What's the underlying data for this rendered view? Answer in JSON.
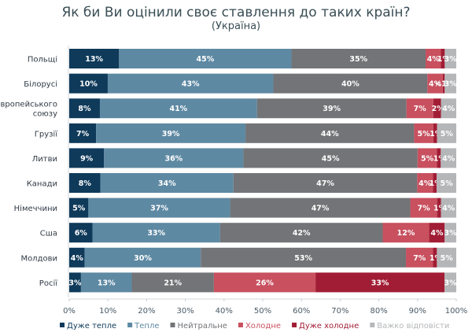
{
  "chart_data": {
    "type": "bar",
    "orientation": "horizontal",
    "stacked": true,
    "percent": true,
    "title": "Як би Ви оцінили своє ставлення до таких країн?",
    "subtitle": "(Україна)",
    "xlabel": "",
    "ylabel": "",
    "xlim": [
      0,
      100
    ],
    "x_ticks": [
      "0%",
      "10%",
      "20%",
      "30%",
      "40%",
      "50%",
      "60%",
      "70%",
      "80%",
      "90%",
      "100%"
    ],
    "grid": false,
    "legend_position": "bottom",
    "categories": [
      "Польщі",
      "Білорусі",
      "Європейського союзу",
      "Грузії",
      "Литви",
      "Канади",
      "Німеччини",
      "Сша",
      "Молдови",
      "Росії"
    ],
    "category_lines": [
      [
        "Польщі"
      ],
      [
        "Білорусі"
      ],
      [
        "Європейського",
        "союзу"
      ],
      [
        "Грузії"
      ],
      [
        "Литви"
      ],
      [
        "Канади"
      ],
      [
        "Німеччини"
      ],
      [
        "Сша"
      ],
      [
        "Молдови"
      ],
      [
        "Росії"
      ]
    ],
    "series": [
      {
        "name": "Дуже тепле",
        "color": "#0f3a5a",
        "values": [
          13,
          10,
          8,
          7,
          9,
          8,
          5,
          6,
          4,
          3
        ],
        "labels": [
          "13%",
          "10%",
          "8%",
          "7%",
          "9%",
          "8%",
          "5%",
          "6%",
          "4%",
          "3%"
        ]
      },
      {
        "name": "Тепле",
        "color": "#5e89a3",
        "values": [
          45,
          43,
          41,
          39,
          36,
          34,
          37,
          33,
          30,
          13
        ],
        "labels": [
          "45%",
          "43%",
          "41%",
          "39%",
          "36%",
          "34%",
          "37%",
          "33%",
          "30%",
          "13%"
        ]
      },
      {
        "name": "Нейтральне",
        "color": "#727477",
        "values": [
          35,
          40,
          39,
          44,
          45,
          47,
          47,
          42,
          53,
          21
        ],
        "labels": [
          "35%",
          "40%",
          "39%",
          "44%",
          "45%",
          "47%",
          "47%",
          "42%",
          "53%",
          "21%"
        ]
      },
      {
        "name": "Холодне",
        "color": "#c8505f",
        "values": [
          4,
          4,
          7,
          5,
          5,
          4,
          7,
          12,
          7,
          26
        ],
        "labels": [
          "4%",
          "4%",
          "7%",
          "5%",
          "5%",
          "4%",
          "7%",
          "12%",
          "7%",
          "26%"
        ]
      },
      {
        "name": "Дуже холодне",
        "color": "#a11d35",
        "values": [
          1,
          0.5,
          2,
          1,
          1,
          1,
          1,
          4,
          1,
          33
        ],
        "labels": [
          "1%",
          "<1%",
          "2%",
          "1%",
          "1%",
          "1%",
          "1%",
          "4%",
          "1%",
          "33%"
        ]
      },
      {
        "name": "Важко відповісти",
        "color": "#b4b6b8",
        "values": [
          3,
          3,
          4,
          5,
          4,
          5,
          4,
          3,
          5,
          3
        ],
        "labels": [
          "3%",
          "3%",
          "4%",
          "5%",
          "4%",
          "5%",
          "4%",
          "3%",
          "5%",
          "3%"
        ]
      }
    ],
    "legend_text_colors": [
      "#0f3a5a",
      "#5e89a3",
      "#727477",
      "#c8505f",
      "#a11d35",
      "#b4b6b8"
    ]
  }
}
